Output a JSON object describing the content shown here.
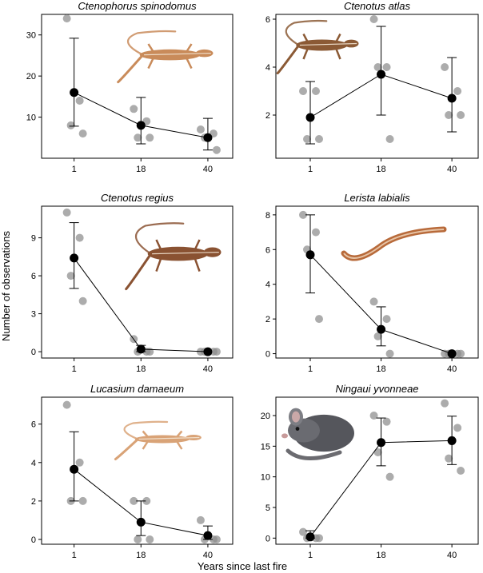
{
  "figure": {
    "ylabel": "Number of observations",
    "xlabel": "Years since last fire"
  },
  "chart_data": [
    {
      "type": "scatter",
      "title": "Ctenophorus spinodomus",
      "categories": [
        "1",
        "18",
        "40"
      ],
      "ylim": [
        0,
        35
      ],
      "yticks": [
        10,
        20,
        30
      ],
      "points": [
        [
          34,
          14,
          8,
          6
        ],
        [
          12,
          9,
          5,
          5
        ],
        [
          7,
          6,
          5,
          2
        ]
      ],
      "mean": [
        16,
        8,
        5
      ],
      "err_low": [
        7.8,
        3.5,
        2
      ],
      "err_high": [
        29.2,
        14.8,
        9.7
      ],
      "animal": "lizard-icon",
      "color": "#c98b5a"
    },
    {
      "type": "scatter",
      "title": "Ctenotus atlas",
      "categories": [
        "1",
        "18",
        "40"
      ],
      "ylim": [
        0.2,
        6.2
      ],
      "yticks": [
        2,
        4,
        6
      ],
      "points": [
        [
          3,
          3,
          1,
          1
        ],
        [
          6,
          4,
          4,
          1
        ],
        [
          4,
          3,
          2,
          2
        ]
      ],
      "mean": [
        1.9,
        3.7,
        2.7
      ],
      "err_low": [
        0.8,
        2,
        1.3
      ],
      "err_high": [
        3.4,
        5.7,
        4.4
      ],
      "animal": "striped-lizard-icon",
      "color": "#8b5a35"
    },
    {
      "type": "scatter",
      "title": "Ctenotus regius",
      "categories": [
        "1",
        "18",
        "40"
      ],
      "ylim": [
        -0.5,
        11.5
      ],
      "yticks": [
        0,
        3,
        6,
        9
      ],
      "points": [
        [
          11,
          9,
          6,
          4
        ],
        [
          1,
          0,
          0,
          0
        ],
        [
          0,
          0,
          0,
          0
        ]
      ],
      "mean": [
        7.4,
        0.2,
        0
      ],
      "err_low": [
        5,
        0,
        0
      ],
      "err_high": [
        10.2,
        0.5,
        0
      ],
      "animal": "skink-icon",
      "color": "#8a5232"
    },
    {
      "type": "scatter",
      "title": "Lerista labialis",
      "categories": [
        "1",
        "18",
        "40"
      ],
      "ylim": [
        -0.25,
        8.5
      ],
      "yticks": [
        0,
        2,
        4,
        6,
        8
      ],
      "points": [
        [
          8,
          7,
          6,
          2
        ],
        [
          3,
          2,
          1,
          0
        ],
        [
          0,
          0,
          0,
          0
        ]
      ],
      "mean": [
        5.7,
        1.4,
        0
      ],
      "err_low": [
        3.5,
        0.45,
        0
      ],
      "err_high": [
        8,
        2.7,
        0
      ],
      "animal": "slender-skink-icon",
      "color": "#b86a3a"
    },
    {
      "type": "scatter",
      "title": "Lucasium damaeum",
      "categories": [
        "1",
        "18",
        "40"
      ],
      "ylim": [
        -0.25,
        7.4
      ],
      "yticks": [
        0,
        2,
        4,
        6
      ],
      "points": [
        [
          7,
          4,
          2,
          2
        ],
        [
          2,
          2,
          0,
          0
        ],
        [
          1,
          0,
          0,
          0
        ]
      ],
      "mean": [
        3.65,
        0.9,
        0.2
      ],
      "err_low": [
        2,
        0.2,
        0
      ],
      "err_high": [
        5.6,
        2,
        0.7
      ],
      "animal": "gecko-icon",
      "color": "#d9a377"
    },
    {
      "type": "scatter",
      "title": "Ningaui yvonneae",
      "categories": [
        "1",
        "18",
        "40"
      ],
      "ylim": [
        -1,
        23
      ],
      "yticks": [
        0,
        5,
        10,
        15,
        20
      ],
      "points": [
        [
          1,
          0,
          0,
          0
        ],
        [
          20,
          19,
          14,
          10
        ],
        [
          22,
          18,
          13,
          11
        ]
      ],
      "mean": [
        0.2,
        15.6,
        15.9
      ],
      "err_low": [
        0,
        11.8,
        12
      ],
      "err_high": [
        1.2,
        19.6,
        19.9
      ],
      "animal": "marsupial-mouse-icon",
      "color": "#55565c"
    }
  ]
}
